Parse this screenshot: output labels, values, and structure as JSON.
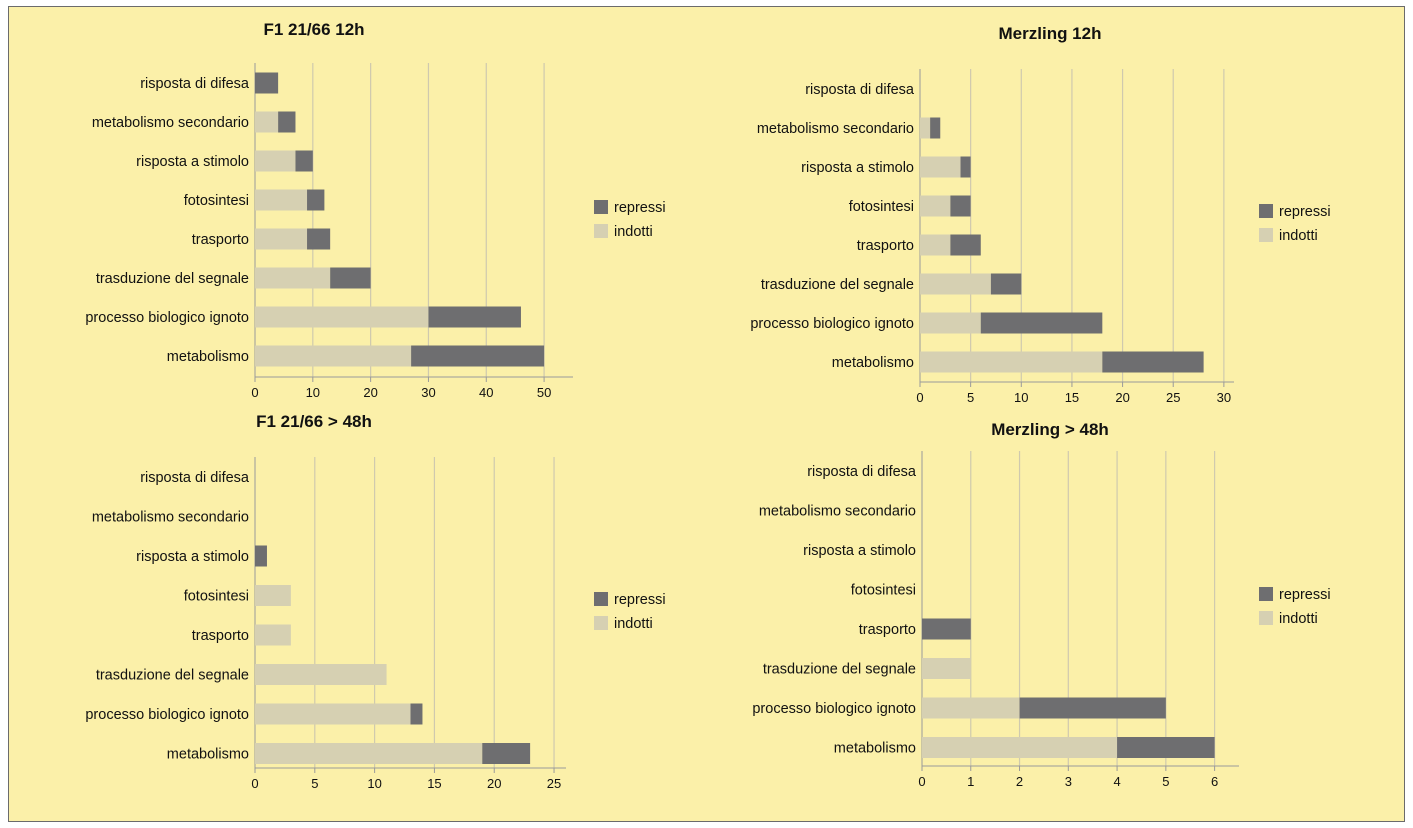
{
  "colors": {
    "background": "#fbf0a9",
    "represssi": "#6e6e70",
    "indotti": "#d6d0b2",
    "grid": "#cfc9ae",
    "axis": "#9a9a9a"
  },
  "chart_data": [
    {
      "type": "bar",
      "orientation": "horizontal",
      "stacked": true,
      "title": "F1 21/66 12h",
      "categories": [
        "risposta di difesa",
        "metabolismo secondario",
        "risposta a stimolo",
        "fotosintesi",
        "trasporto",
        "trasduzione del segnale",
        "processo biologico ignoto",
        "metabolismo"
      ],
      "series": [
        {
          "name": "indotti",
          "values": [
            0,
            4,
            7,
            9,
            9,
            13,
            30,
            27
          ]
        },
        {
          "name": "repressi",
          "values": [
            4,
            3,
            3,
            3,
            4,
            7,
            16,
            23
          ]
        }
      ],
      "xlim": [
        0,
        55
      ],
      "xticks": [
        0,
        10,
        20,
        30,
        40,
        50
      ],
      "legend_order": [
        "repressi",
        "indotti"
      ],
      "legend_position": "right"
    },
    {
      "type": "bar",
      "orientation": "horizontal",
      "stacked": true,
      "title": "Merzling 12h",
      "categories": [
        "risposta di difesa",
        "metabolismo secondario",
        "risposta a stimolo",
        "fotosintesi",
        "trasporto",
        "trasduzione del segnale",
        "processo biologico ignoto",
        "metabolismo"
      ],
      "series": [
        {
          "name": "indotti",
          "values": [
            0,
            1,
            4,
            3,
            3,
            7,
            6,
            18
          ]
        },
        {
          "name": "repressi",
          "values": [
            0,
            1,
            1,
            2,
            3,
            3,
            12,
            10
          ]
        }
      ],
      "xlim": [
        0,
        31
      ],
      "xticks": [
        0,
        5,
        10,
        15,
        20,
        25,
        30
      ],
      "legend_order": [
        "repressi",
        "indotti"
      ],
      "legend_position": "right"
    },
    {
      "type": "bar",
      "orientation": "horizontal",
      "stacked": true,
      "title": "F1 21/66 > 48h",
      "categories": [
        "risposta di difesa",
        "metabolismo secondario",
        "risposta a stimolo",
        "fotosintesi",
        "trasporto",
        "trasduzione del segnale",
        "processo biologico ignoto",
        "metabolismo"
      ],
      "series": [
        {
          "name": "indotti",
          "values": [
            0,
            0,
            0,
            3,
            3,
            11,
            13,
            19
          ]
        },
        {
          "name": "repressi",
          "values": [
            0,
            0,
            1,
            0,
            0,
            0,
            1,
            4
          ]
        }
      ],
      "xlim": [
        0,
        26
      ],
      "xticks": [
        0,
        5,
        10,
        15,
        20,
        25
      ],
      "legend_order": [
        "repressi",
        "indotti"
      ],
      "legend_position": "right"
    },
    {
      "type": "bar",
      "orientation": "horizontal",
      "stacked": true,
      "title": "Merzling > 48h",
      "categories": [
        "risposta di difesa",
        "metabolismo secondario",
        "risposta a stimolo",
        "fotosintesi",
        "trasporto",
        "trasduzione del segnale",
        "processo biologico ignoto",
        "metabolismo"
      ],
      "series": [
        {
          "name": "indotti",
          "values": [
            0,
            0,
            0,
            0,
            0,
            1,
            2,
            4
          ]
        },
        {
          "name": "repressi",
          "values": [
            0,
            0,
            0,
            0,
            1,
            0,
            3,
            2
          ]
        }
      ],
      "xlim": [
        0,
        6.5
      ],
      "xticks": [
        0,
        1,
        2,
        3,
        4,
        5,
        6
      ],
      "legend_order": [
        "repressi",
        "indotti"
      ],
      "legend_position": "right"
    }
  ]
}
